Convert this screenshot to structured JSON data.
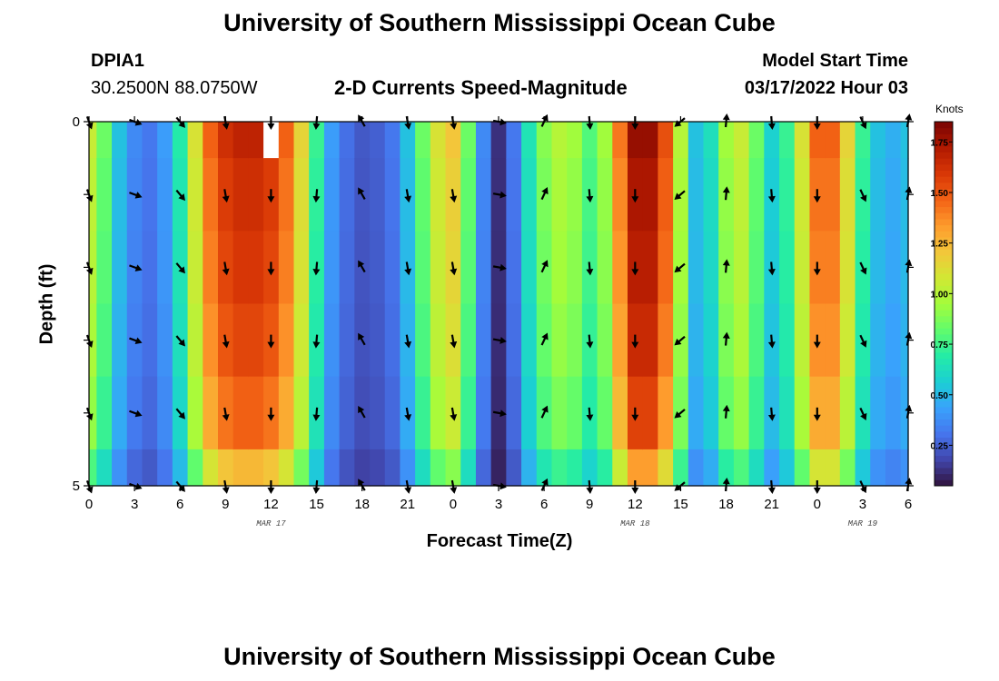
{
  "header": {
    "title": "University of Southern Mississippi Ocean Cube",
    "station_id": "DPIA1",
    "coordinates": "30.2500N  88.0750W",
    "subtitle": "2-D Currents Speed-Magnitude",
    "model_start_label": "Model Start Time",
    "model_start_value": "03/17/2022 Hour 03"
  },
  "footer": {
    "title": "University of Southern Mississippi Ocean Cube"
  },
  "colors": {
    "colormap": [
      "#30123b",
      "#4145ab",
      "#4675ed",
      "#39a2fc",
      "#1bcfd4",
      "#24eca6",
      "#61fc6c",
      "#a4fc3b",
      "#d1e834",
      "#f3c63a",
      "#fe9b2d",
      "#f36315",
      "#d93806",
      "#b11901",
      "#7a0402"
    ],
    "arrow": "#000000",
    "missing": "#ffffff"
  },
  "chart_data": {
    "type": "heatmap",
    "title": "2-D Currents Speed-Magnitude",
    "xlabel": "Forecast Time(Z)",
    "ylabel": "Depth (ft)",
    "x_hours_range": [
      0,
      54
    ],
    "y_range": [
      0,
      5
    ],
    "y_ticks": [
      0,
      1,
      2,
      3,
      4,
      5
    ],
    "y_tick_labels": [
      "0",
      "",
      "",
      "",
      "",
      "5"
    ],
    "x_ticks_hours": [
      0,
      3,
      6,
      9,
      12,
      15,
      18,
      21,
      24,
      27,
      30,
      33,
      36,
      39,
      42,
      45,
      48,
      51,
      54
    ],
    "x_tick_labels": [
      "0",
      "3",
      "6",
      "9",
      "12",
      "15",
      "18",
      "21",
      "0",
      "3",
      "6",
      "9",
      "12",
      "15",
      "18",
      "21",
      "0",
      "3",
      "6"
    ],
    "date_labels": [
      {
        "text": "MAR 17",
        "hour": 12
      },
      {
        "text": "MAR 18",
        "hour": 36
      },
      {
        "text": "MAR 19",
        "hour": 51
      }
    ],
    "colorbar": {
      "unit": "Knots",
      "range": [
        0.05,
        1.85
      ],
      "ticks": [
        0.25,
        0.5,
        0.75,
        1.0,
        1.25,
        1.5,
        1.75
      ],
      "tick_labels": [
        "0.25",
        "0.50",
        "0.75",
        "1.00",
        "1.25",
        "1.50",
        "1.75"
      ]
    },
    "time_hours": [
      0,
      1,
      2,
      3,
      4,
      5,
      6,
      7,
      8,
      9,
      10,
      11,
      12,
      13,
      14,
      15,
      16,
      17,
      18,
      19,
      20,
      21,
      22,
      23,
      24,
      25,
      26,
      27,
      28,
      29,
      30,
      31,
      32,
      33,
      34,
      35,
      36,
      37,
      38,
      39,
      40,
      41,
      42,
      43,
      44,
      45,
      46,
      47,
      48,
      49,
      50,
      51,
      52,
      53,
      54
    ],
    "speed_by_hour_knots": [
      1.0,
      0.8,
      0.5,
      0.35,
      0.3,
      0.4,
      0.65,
      1.05,
      1.4,
      1.55,
      1.6,
      1.6,
      1.55,
      1.4,
      1.1,
      0.7,
      0.4,
      0.28,
      0.22,
      0.24,
      0.3,
      0.5,
      0.8,
      1.05,
      1.15,
      0.8,
      0.35,
      0.12,
      0.3,
      0.62,
      0.85,
      0.95,
      0.9,
      0.75,
      0.9,
      1.35,
      1.7,
      1.7,
      1.45,
      0.95,
      0.5,
      0.6,
      0.9,
      1.0,
      0.8,
      0.55,
      0.7,
      1.05,
      1.4,
      1.4,
      1.1,
      0.7,
      0.5,
      0.45,
      0.5
    ],
    "depth_factor": [
      1.05,
      1.02,
      1.0,
      0.97,
      0.92,
      0.78
    ],
    "missing_cells": [
      {
        "hour": 12,
        "depth_band": 0
      }
    ],
    "vectors": {
      "hours": [
        0,
        3,
        6,
        9,
        12,
        15,
        18,
        21,
        24,
        27,
        30,
        33,
        36,
        39,
        42,
        45,
        48,
        51,
        54
      ],
      "depths": [
        0,
        1,
        2,
        3,
        4,
        5
      ],
      "direction_deg_by_hour": [
        160,
        110,
        140,
        170,
        180,
        185,
        330,
        170,
        170,
        100,
        25,
        175,
        180,
        230,
        5,
        175,
        180,
        155,
        10
      ]
    }
  }
}
